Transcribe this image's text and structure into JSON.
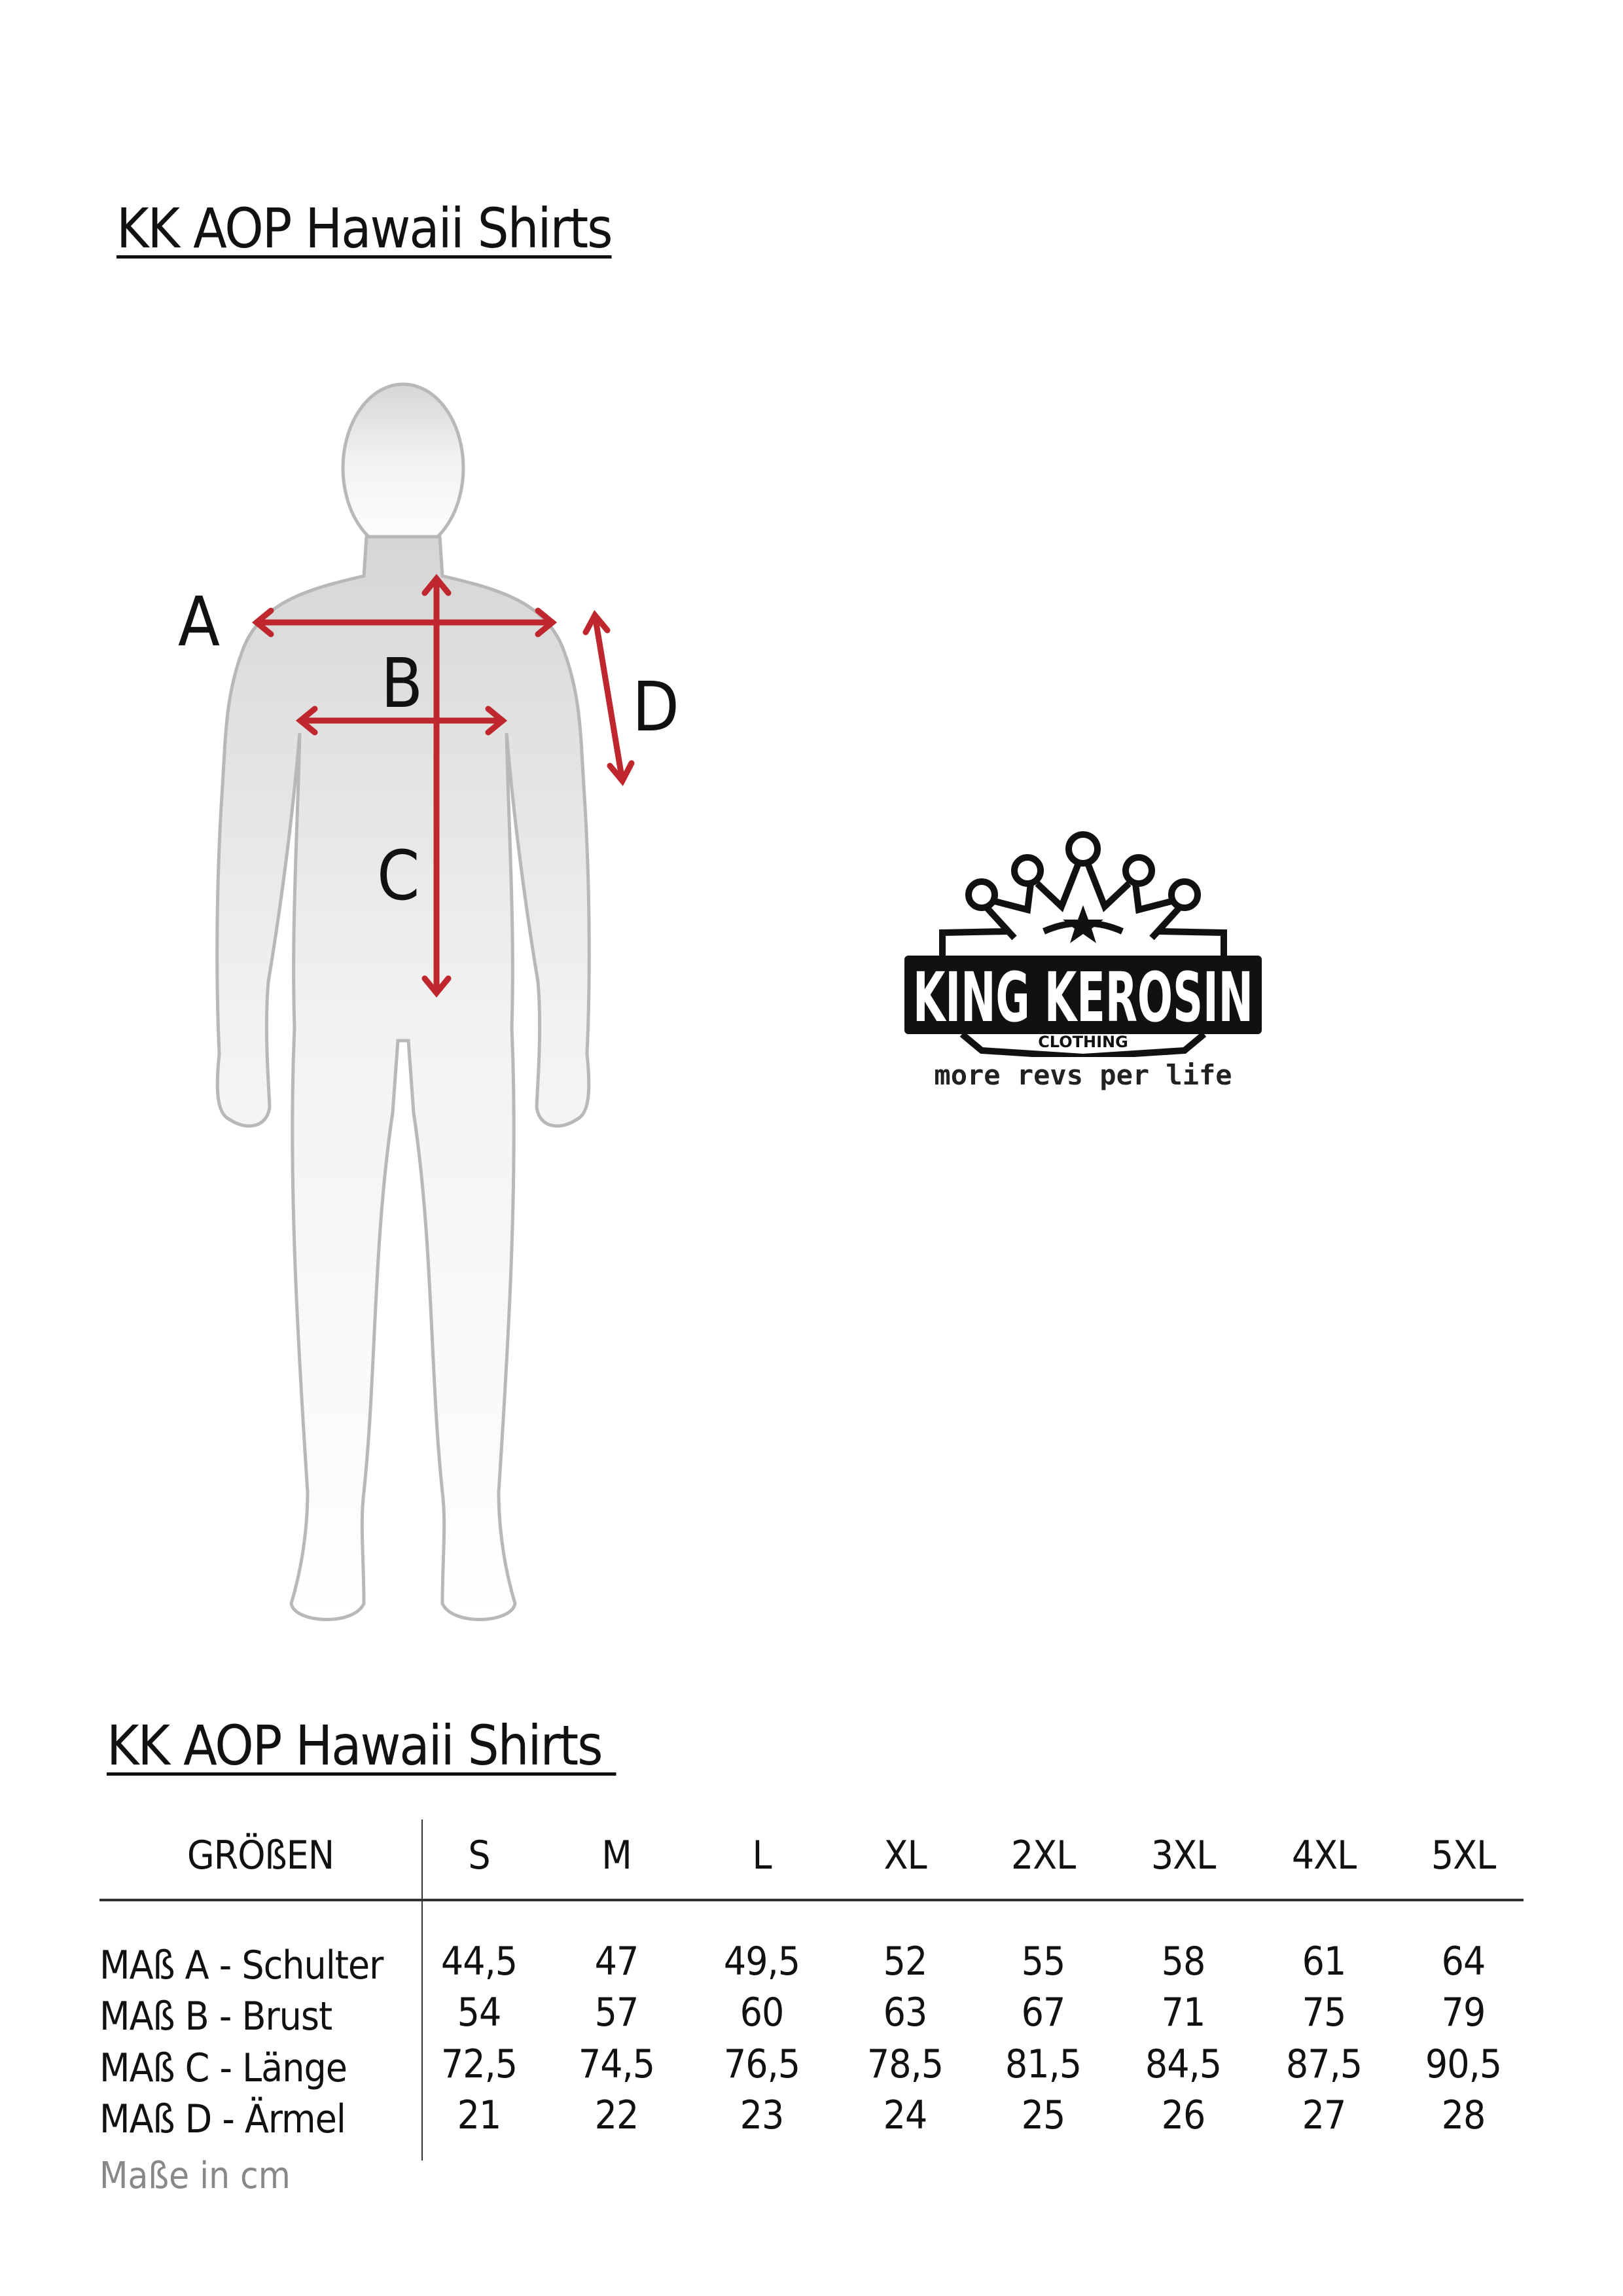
{
  "title_top": "KK AOP Hawaii Shirts",
  "figure": {
    "labels": {
      "a": "A",
      "b": "B",
      "c": "C",
      "d": "D"
    },
    "arrow_color": "#c0262d"
  },
  "logo": {
    "brand": "KING KEROSIN",
    "sub": "CLOTHING",
    "tagline": "more revs per life"
  },
  "title_table": "KK AOP Hawaii Shirts ",
  "table": {
    "header_label": "GRÖßEN",
    "sizes": [
      "S",
      "M",
      "L",
      "XL",
      "2XL",
      "3XL",
      "4XL",
      "5XL"
    ],
    "rows": [
      {
        "label": "MAß A - Schulter",
        "values": [
          "44,5",
          "47",
          "49,5",
          "52",
          "55",
          "58",
          "61",
          "64"
        ]
      },
      {
        "label": "MAß B - Brust",
        "values": [
          "54",
          "57",
          "60",
          "63",
          "67",
          "71",
          "75",
          "79"
        ]
      },
      {
        "label": "MAß C - Länge",
        "values": [
          "72,5",
          "74,5",
          "76,5",
          "78,5",
          "81,5",
          "84,5",
          "87,5",
          "90,5"
        ]
      },
      {
        "label": "MAß D - Ärmel",
        "values": [
          "21",
          "22",
          "23",
          "24",
          "25",
          "26",
          "27",
          "28"
        ]
      }
    ],
    "unit_note": "Maße in cm"
  }
}
